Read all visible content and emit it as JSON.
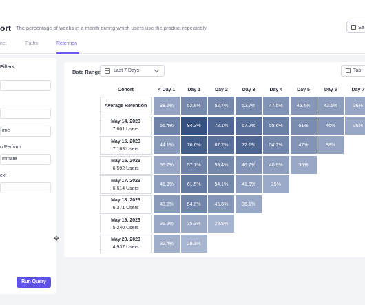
{
  "header": {
    "title": "ort",
    "subtitle": "The percentage of weeks in a month during which users use the product repeatedly",
    "save_label": "Sa"
  },
  "tabs": [
    {
      "label": "nel",
      "active": false
    },
    {
      "label": "Paths",
      "active": false
    },
    {
      "label": "Retention",
      "active": true
    }
  ],
  "filters": {
    "title": "Filters",
    "input1": "",
    "input2": "",
    "time_value": "ime",
    "perform_label": "o Perform",
    "perform_value": "mmate",
    "next_label": "ext",
    "next_value": "",
    "run_label": "Run Query"
  },
  "controls": {
    "date_range_label": "Date Range",
    "date_range_value": "Last 7 Days",
    "view_label": "Tab"
  },
  "table": {
    "columns": [
      "Cohort",
      "< Day 1",
      "Day 1",
      "Day 2",
      "Day 3",
      "Day 4",
      "Day 5",
      "Day 6",
      "Day 7"
    ],
    "rows": [
      {
        "date": "Average Retention",
        "users": "",
        "values": [
          "38.2%",
          "52.8%",
          "52.7%",
          "52.7%",
          "47.5%",
          "45.4%",
          "42.5%",
          "36%"
        ]
      },
      {
        "date": "May 14. 2023",
        "users": "7,601 Users",
        "values": [
          "56.4%",
          "84.3%",
          "72.1%",
          "67.2%",
          "58.6%",
          "51%",
          "46%",
          "36%"
        ]
      },
      {
        "date": "May 15. 2023",
        "users": "7,163 Users",
        "values": [
          "44.1%",
          "76.6%",
          "67.2%",
          "72.1%",
          "54.2%",
          "47%",
          "38%"
        ]
      },
      {
        "date": "May 16. 2023",
        "users": "6,592 Users",
        "values": [
          "36.7%",
          "57.1%",
          "53.4%",
          "46.7%",
          "40.9%",
          "36%"
        ]
      },
      {
        "date": "May 17. 2023",
        "users": "6,614 Users",
        "values": [
          "41.3%",
          "61.5%",
          "54.1%",
          "41.6%",
          "35%"
        ]
      },
      {
        "date": "May 18. 2023",
        "users": "6,371 Users",
        "values": [
          "43.5%",
          "54.8%",
          "45.6%",
          "36.1%"
        ]
      },
      {
        "date": "May 19. 2023",
        "users": "5,240 Users",
        "values": [
          "36.9%",
          "35.3%",
          "29.5%"
        ]
      },
      {
        "date": "May 20. 2023",
        "users": "4,937 Users",
        "values": [
          "32.4%",
          "28.3%"
        ]
      }
    ]
  },
  "colors": {
    "accent": "#5e52e6",
    "heat_low": "#aab6d4",
    "heat_high": "#3a5580"
  }
}
